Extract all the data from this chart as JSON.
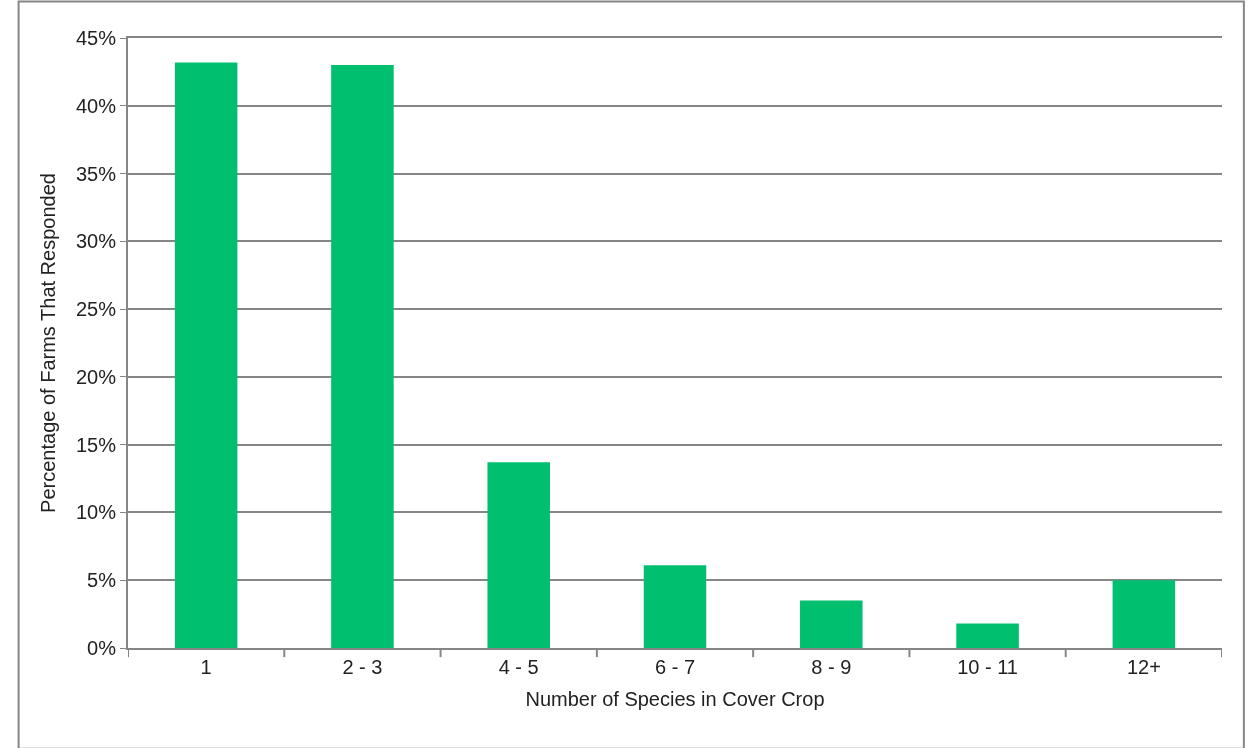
{
  "chart_data": {
    "type": "bar",
    "xlabel": "Number of Species in Cover Crop",
    "ylabel": "Percentage of Farms That Responded",
    "categories": [
      "1",
      "2 - 3",
      "4 - 5",
      "6 - 7",
      "8 - 9",
      "10 - 11",
      "12+"
    ],
    "values": [
      43.2,
      43.0,
      13.7,
      6.1,
      3.5,
      1.8,
      5.0
    ],
    "color": "#00bf6f",
    "ylim": [
      0,
      45
    ],
    "yticks": [
      {
        "value": 0,
        "label": "0%"
      },
      {
        "value": 5,
        "label": "5%"
      },
      {
        "value": 10,
        "label": "10%"
      },
      {
        "value": 15,
        "label": "15%"
      },
      {
        "value": 20,
        "label": "20%"
      },
      {
        "value": 25,
        "label": "25%"
      },
      {
        "value": 30,
        "label": "30%"
      },
      {
        "value": 35,
        "label": "35%"
      },
      {
        "value": 40,
        "label": "40%"
      },
      {
        "value": 45,
        "label": "45%"
      }
    ],
    "grid": "y"
  }
}
